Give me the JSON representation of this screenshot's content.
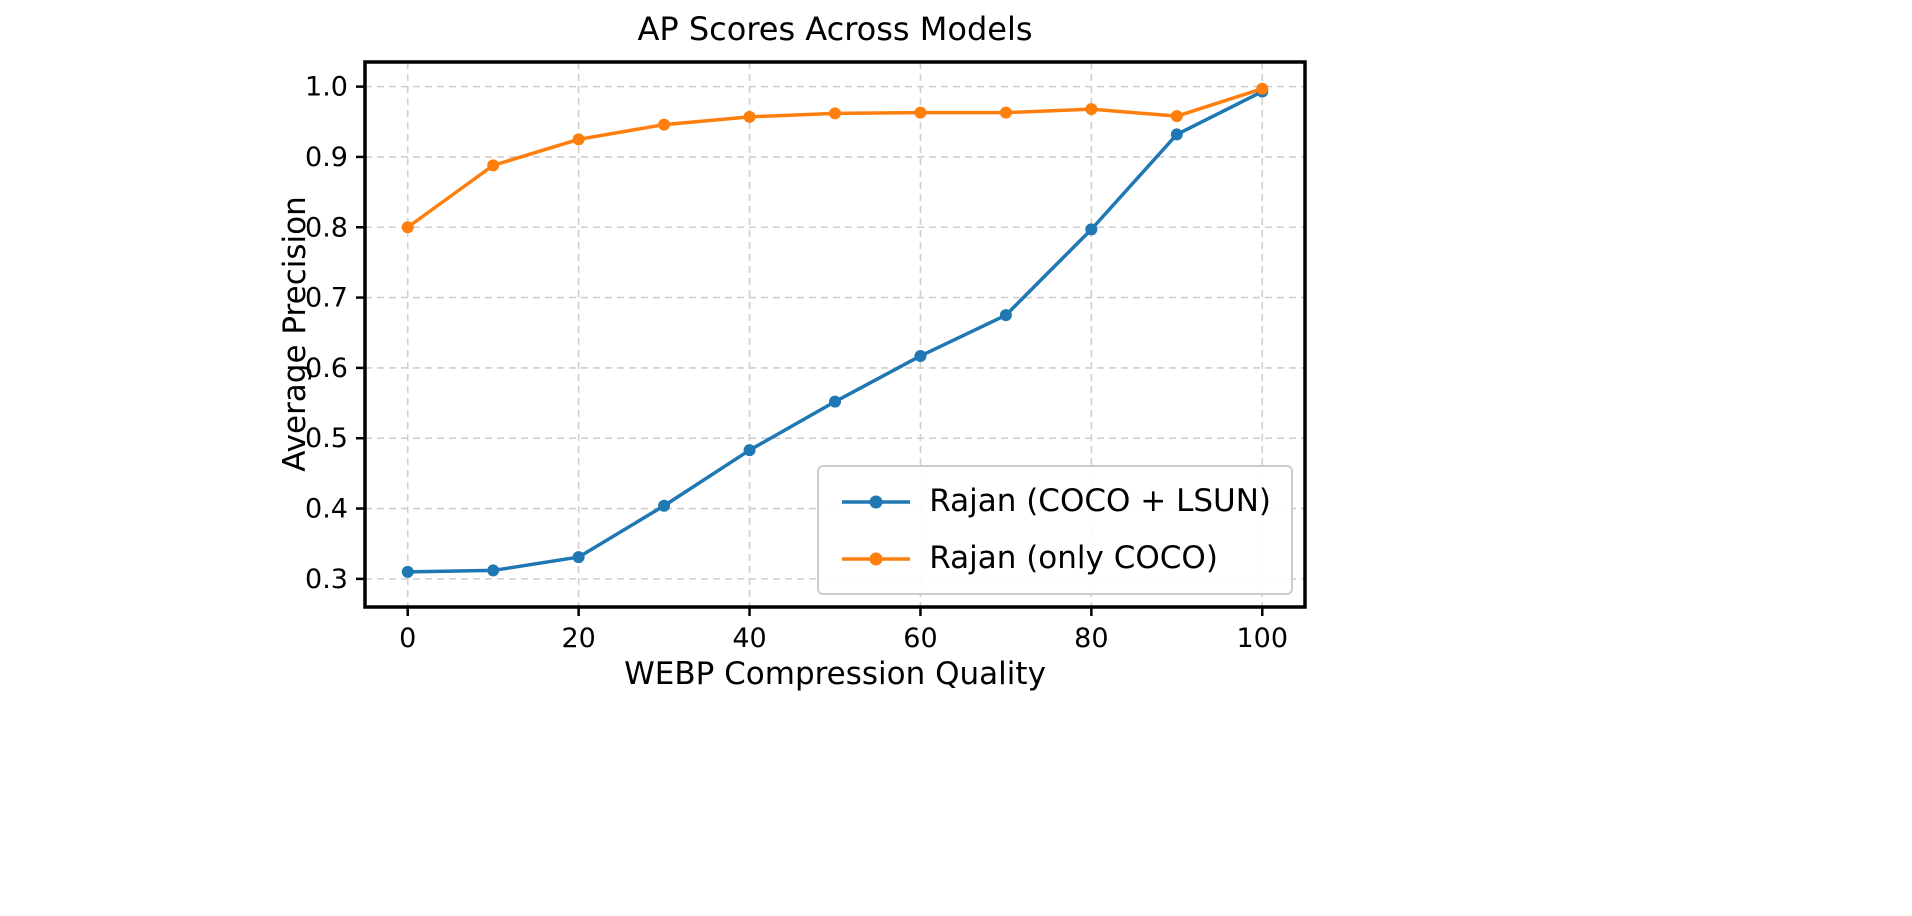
{
  "chart_data": {
    "type": "line",
    "title": "AP Scores Across Models",
    "xlabel": "WEBP Compression Quality",
    "ylabel": "Average Precision",
    "x": [
      0,
      10,
      20,
      30,
      40,
      50,
      60,
      70,
      80,
      90,
      100
    ],
    "series": [
      {
        "name": "Rajan (COCO + LSUN)",
        "color": "#1f77b4",
        "marker": "circle",
        "values": [
          0.31,
          0.312,
          0.331,
          0.404,
          0.483,
          0.552,
          0.617,
          0.675,
          0.797,
          0.932,
          0.993
        ]
      },
      {
        "name": "Rajan (only COCO)",
        "color": "#ff7f0e",
        "marker": "circle",
        "values": [
          0.8,
          0.888,
          0.925,
          0.946,
          0.957,
          0.962,
          0.963,
          0.963,
          0.968,
          0.958,
          0.997
        ]
      }
    ],
    "xticks": [
      0,
      20,
      40,
      60,
      80,
      100
    ],
    "yticks": [
      0.3,
      0.4,
      0.5,
      0.6,
      0.7,
      0.8,
      0.9,
      1.0
    ],
    "xlim": [
      -5,
      105
    ],
    "ylim": [
      0.26,
      1.035
    ],
    "grid": true,
    "grid_style": "dashed",
    "legend_position": "lower right",
    "grid_color": "#cfcfcf",
    "axis_color": "#000000"
  }
}
